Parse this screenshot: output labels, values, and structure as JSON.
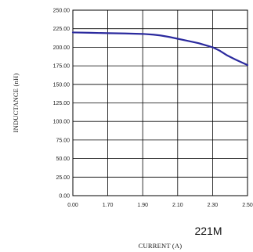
{
  "chart_data": {
    "type": "line",
    "xlabel": "CURRENT (A)",
    "ylabel": "INDUCTANCE (nH)",
    "annotation": "221M",
    "x_tick_labels": [
      "0.00",
      "1.70",
      "1.90",
      "2.10",
      "2.30",
      "2.50"
    ],
    "y_tick_labels": [
      "0.00",
      "25.00",
      "50.00",
      "75.00",
      "100.00",
      "125.00",
      "150.00",
      "175.00",
      "200.00",
      "225.00",
      "250.00"
    ],
    "ylim": [
      0,
      250
    ],
    "grid": true,
    "series": [
      {
        "color": "#2b2a9e",
        "x_tick_positions": [
          0,
          0.5,
          1,
          1.5,
          2,
          2.3,
          2.5,
          2.75,
          3,
          3.3,
          3.6,
          4,
          4.2,
          4.4,
          4.65,
          5
        ],
        "values": [
          220,
          219.5,
          219,
          218.6,
          218,
          217,
          216,
          214,
          211.5,
          208.5,
          205.5,
          200,
          195.5,
          189.5,
          183.5,
          176
        ]
      }
    ]
  }
}
